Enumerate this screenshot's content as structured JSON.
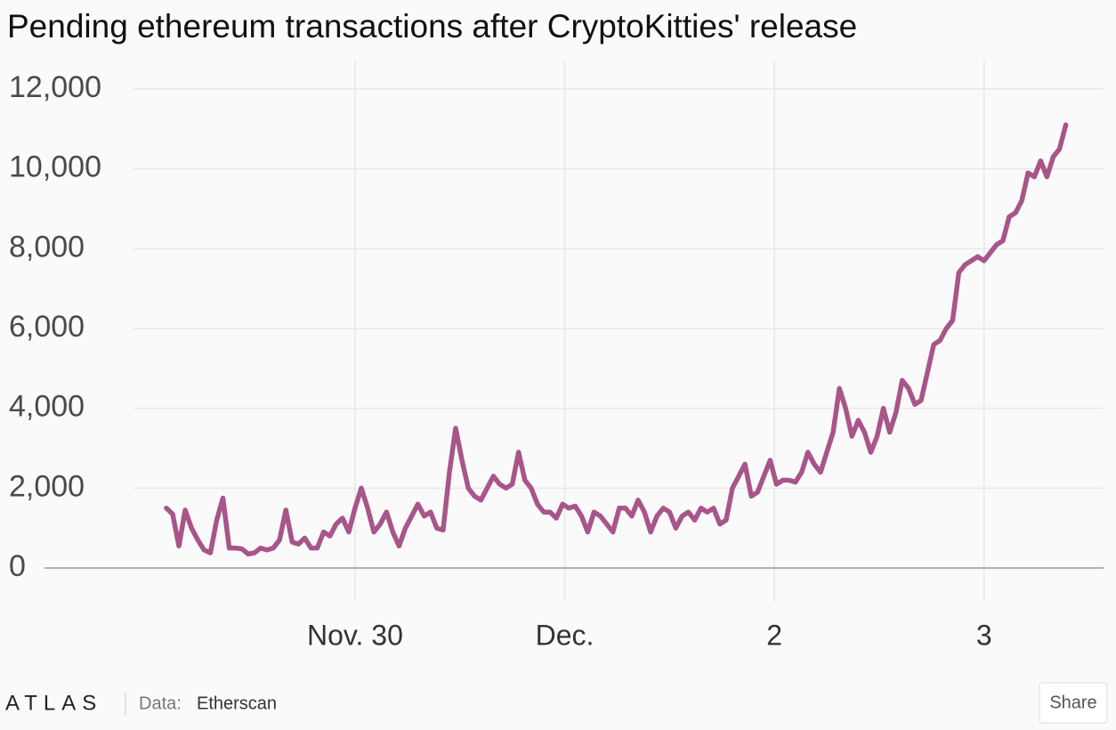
{
  "chart_data": {
    "type": "line",
    "title": "Pending ethereum transactions after CryptoKitties' release",
    "x": [
      29.1,
      29.13,
      29.16,
      29.19,
      29.22,
      29.25,
      29.28,
      29.31,
      29.34,
      29.37,
      29.4,
      29.43,
      29.46,
      29.49,
      29.52,
      29.55,
      29.58,
      29.61,
      29.64,
      29.67,
      29.7,
      29.73,
      29.76,
      29.79,
      29.82,
      29.85,
      29.88,
      29.91,
      29.94,
      29.97,
      30,
      30.03,
      30.06,
      30.09,
      30.12,
      30.15,
      30.18,
      30.21,
      30.24,
      30.27,
      30.3,
      30.33,
      30.36,
      30.39,
      30.42,
      30.45,
      30.48,
      30.51,
      30.54,
      30.57,
      30.6,
      30.63,
      30.66,
      30.69,
      30.72,
      30.75,
      30.78,
      30.81,
      30.84,
      30.87,
      30.9,
      30.93,
      30.96,
      30.99,
      31.02,
      31.05,
      31.08,
      31.11,
      31.14,
      31.17,
      31.2,
      31.23,
      31.26,
      31.29,
      31.32,
      31.35,
      31.38,
      31.41,
      31.44,
      31.47,
      31.5,
      31.53,
      31.56,
      31.59,
      31.62,
      31.65,
      31.68,
      31.71,
      31.74,
      31.77,
      31.8,
      31.83,
      31.86,
      31.89,
      31.92,
      31.95,
      31.98,
      32.01,
      32.04,
      32.07,
      32.1,
      32.13,
      32.16,
      32.19,
      32.22,
      32.25,
      32.28,
      32.31,
      32.34,
      32.37,
      32.4,
      32.43,
      32.46,
      32.49,
      32.52,
      32.55,
      32.58,
      32.61,
      32.64,
      32.67,
      32.7,
      32.73,
      32.76,
      32.79,
      32.82,
      32.85,
      32.88,
      32.91,
      32.94,
      32.97,
      33,
      33.03,
      33.06,
      33.09,
      33.12,
      33.15,
      33.18,
      33.21,
      33.24,
      33.27,
      33.3,
      33.33,
      33.36,
      33.39
    ],
    "series": [
      {
        "color": "#a8558a",
        "values": [
          1500,
          1350,
          550,
          1450,
          1000,
          700,
          450,
          380,
          1200,
          1750,
          500,
          500,
          480,
          350,
          380,
          500,
          450,
          500,
          700,
          1450,
          650,
          600,
          750,
          500,
          500,
          900,
          800,
          1100,
          1250,
          900,
          1500,
          2000,
          1500,
          900,
          1100,
          1400,
          900,
          550,
          1000,
          1300,
          1600,
          1300,
          1400,
          1000,
          950,
          2400,
          3500,
          2700,
          2000,
          1800,
          1700,
          2000,
          2300,
          2100,
          2000,
          2100,
          2900,
          2200,
          2000,
          1600,
          1400,
          1400,
          1250,
          1600,
          1500,
          1550,
          1300,
          900,
          1400,
          1300,
          1100,
          900,
          1500,
          1500,
          1300,
          1700,
          1400,
          900,
          1300,
          1500,
          1400,
          1000,
          1300,
          1400,
          1200,
          1500,
          1400,
          1500,
          1100,
          1200,
          2000,
          2300,
          2600,
          1800,
          1900,
          2300,
          2700,
          2100,
          2200,
          2200,
          2150,
          2400,
          2900,
          2600,
          2400,
          2900,
          3400,
          4500,
          4000,
          3300,
          3700,
          3400,
          2900,
          3300,
          4000,
          3400,
          3900,
          4700,
          4500,
          4100,
          4200,
          4900,
          5600,
          5700,
          6000,
          6200,
          7400,
          7600,
          7700,
          7800,
          7700,
          7900,
          8100,
          8200,
          8800,
          8900,
          9200,
          9900,
          9800,
          10200,
          9800,
          10300,
          10500,
          11100
        ]
      }
    ],
    "xlim": [
      28.4,
      33.57
    ],
    "xticks": [
      {
        "value": 30,
        "label": "Nov. 30"
      },
      {
        "value": 31,
        "label": "Dec."
      },
      {
        "value": 32,
        "label": "2"
      },
      {
        "value": 33,
        "label": "3"
      }
    ],
    "ylim": [
      0,
      12000
    ],
    "yticks": [
      0,
      {
        "value": 2000,
        "label": "2,000"
      },
      {
        "value": 4000,
        "label": "4,000"
      },
      {
        "value": 6000,
        "label": "6,000"
      },
      {
        "value": 8000,
        "label": "8,000"
      },
      {
        "value": 10000,
        "label": "10,000"
      },
      {
        "value": 12000,
        "label": "12,000"
      }
    ],
    "grid": true
  },
  "footer": {
    "logo": "ATLAS",
    "source_label": "Data:",
    "source": "Etherscan",
    "share": "Share"
  }
}
